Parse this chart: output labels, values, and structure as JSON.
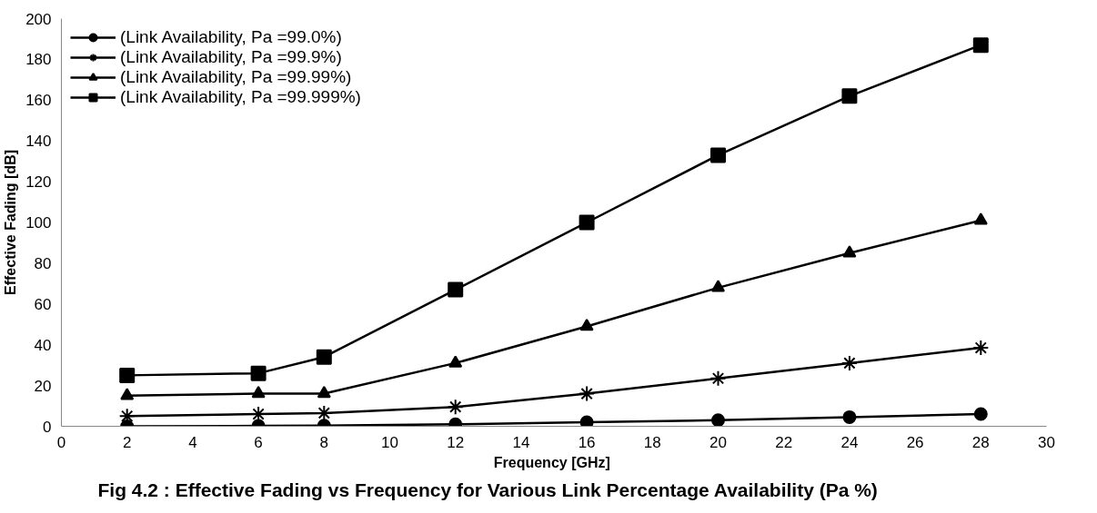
{
  "chart_data": {
    "type": "line",
    "title": "Fig 4.2 : Effective Fading vs Frequency for Various  Link Percentage Availability (Pa %)",
    "xlabel": "Frequency  [GHz]",
    "ylabel": "Effective Fading [dB]",
    "x": [
      2,
      6,
      8,
      12,
      16,
      20,
      24,
      28
    ],
    "series": [
      {
        "name": "(Link Availability, Pa =99.0%)",
        "color": "#000000",
        "marker": "circle",
        "values": [
          0,
          0.2,
          0.3,
          1,
          2,
          3,
          4.5,
          6
        ]
      },
      {
        "name": "(Link Availability, Pa =99.9%)",
        "color": "#000000",
        "marker": "cross",
        "values": [
          5,
          6,
          6.5,
          9.5,
          16,
          23.5,
          31,
          38.5
        ]
      },
      {
        "name": "(Link Availability, Pa =99.99%)",
        "color": "#000000",
        "marker": "triangle",
        "values": [
          15,
          16,
          16,
          31,
          49,
          68,
          85,
          101
        ]
      },
      {
        "name": "(Link Availability, Pa =99.999%)",
        "color": "#000000",
        "marker": "square",
        "values": [
          25,
          26,
          34,
          67,
          100,
          133,
          162,
          187
        ]
      }
    ],
    "xlim": [
      0,
      30
    ],
    "xticks": [
      0,
      2,
      4,
      6,
      8,
      10,
      12,
      14,
      16,
      18,
      20,
      22,
      24,
      26,
      28,
      30
    ],
    "ylim": [
      0,
      200
    ],
    "yticks": [
      0,
      20,
      40,
      60,
      80,
      100,
      120,
      140,
      160,
      180,
      200
    ],
    "grid": false,
    "legend": "top left",
    "line_style": "solid"
  }
}
